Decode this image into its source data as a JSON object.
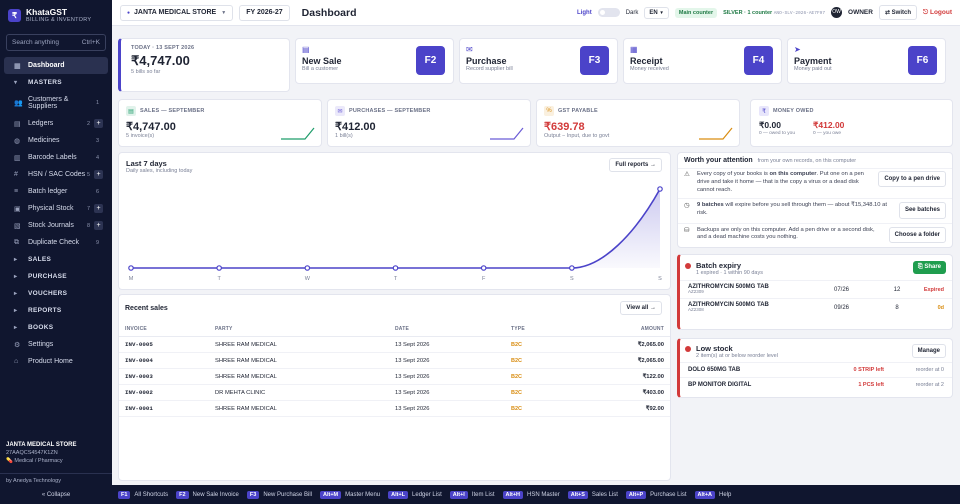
{
  "brand": {
    "name": "KhataGST",
    "subtitle": "BILLING & INVENTORY",
    "logo_symbol": "₹"
  },
  "sidebar": {
    "search": {
      "placeholder": "Search anything",
      "shortcut": "Ctrl+K"
    },
    "items": [
      {
        "label": "Dashboard",
        "icon": "grid-icon",
        "count": "",
        "plus": false,
        "active": true,
        "section": false
      },
      {
        "label": "MASTERS",
        "icon": "chevron-down-icon",
        "count": "",
        "plus": false,
        "active": false,
        "section": true
      },
      {
        "label": "Customers & Suppliers",
        "icon": "users-icon",
        "count": "1",
        "plus": false,
        "active": false,
        "section": false
      },
      {
        "label": "Ledgers",
        "icon": "book-icon",
        "count": "2",
        "plus": true,
        "active": false,
        "section": false
      },
      {
        "label": "Medicines",
        "icon": "pill-icon",
        "count": "3",
        "plus": false,
        "active": false,
        "section": false
      },
      {
        "label": "Barcode Labels",
        "icon": "barcode-icon",
        "count": "4",
        "plus": false,
        "active": false,
        "section": false
      },
      {
        "label": "HSN / SAC Codes",
        "icon": "hash-icon",
        "count": "5",
        "plus": true,
        "active": false,
        "section": false
      },
      {
        "label": "Batch ledger",
        "icon": "layers-icon",
        "count": "6",
        "plus": false,
        "active": false,
        "section": false
      },
      {
        "label": "Physical Stock",
        "icon": "box-icon",
        "count": "7",
        "plus": true,
        "active": false,
        "section": false
      },
      {
        "label": "Stock Journals",
        "icon": "journal-icon",
        "count": "8",
        "plus": true,
        "active": false,
        "section": false
      },
      {
        "label": "Duplicate Check",
        "icon": "copy-icon",
        "count": "9",
        "plus": false,
        "active": false,
        "section": false
      },
      {
        "label": "SALES",
        "icon": "chevron-right-icon",
        "count": "",
        "plus": false,
        "active": false,
        "section": true
      },
      {
        "label": "PURCHASE",
        "icon": "chevron-right-icon",
        "count": "",
        "plus": false,
        "active": false,
        "section": true
      },
      {
        "label": "VOUCHERS",
        "icon": "chevron-right-icon",
        "count": "",
        "plus": false,
        "active": false,
        "section": true
      },
      {
        "label": "REPORTS",
        "icon": "chevron-right-icon",
        "count": "",
        "plus": false,
        "active": false,
        "section": true
      },
      {
        "label": "BOOKS",
        "icon": "chevron-right-icon",
        "count": "",
        "plus": false,
        "active": false,
        "section": true
      },
      {
        "label": "Settings",
        "icon": "gear-icon",
        "count": "",
        "plus": false,
        "active": false,
        "section": false
      },
      {
        "label": "Product Home",
        "icon": "home-icon",
        "count": "",
        "plus": false,
        "active": false,
        "section": false
      }
    ],
    "footer": {
      "firm": "JANTA MEDICAL STORE",
      "gstin": "27AAQCS4547K1ZN",
      "type": "Medical / Pharmacy",
      "by": "by Anedya Technology",
      "collapse": "« Collapse"
    }
  },
  "topbar": {
    "company": "JANTA MEDICAL STORE",
    "fy": "FY 2026-27",
    "title": "Dashboard",
    "theme_light": "Light",
    "theme_dark": "Dark",
    "lang": "EN",
    "counter": "Main counter",
    "license": "SILVER · 1 counter",
    "license_key": "ANO-SLV-2026-AE7F97",
    "user_initials": "OW",
    "user": "OWNER",
    "switch": "Switch",
    "logout": "Logout"
  },
  "today": {
    "label": "TODAY · 13 SEPT 2026",
    "amount": "₹4,747.00",
    "sub": "5 bills so far"
  },
  "quick_actions": [
    {
      "title": "New Sale",
      "sub": "Bill a customer",
      "key": "F2",
      "icon": "document-icon"
    },
    {
      "title": "Purchase",
      "sub": "Record supplier bill",
      "key": "F3",
      "icon": "inbox-icon"
    },
    {
      "title": "Receipt",
      "sub": "Money received",
      "key": "F4",
      "icon": "receipt-icon"
    },
    {
      "title": "Payment",
      "sub": "Money paid out",
      "key": "F6",
      "icon": "send-icon"
    }
  ],
  "stats": [
    {
      "label": "SALES — SEPTEMBER",
      "value": "₹4,747.00",
      "sub": "5 invoice(s)",
      "icon": "document-icon",
      "color": "#1f9d6b",
      "valcolor": "#1f2433"
    },
    {
      "label": "PURCHASES — SEPTEMBER",
      "value": "₹412.00",
      "sub": "1 bill(s)",
      "icon": "inbox-icon",
      "color": "#6b5cd6",
      "valcolor": "#1f2433"
    },
    {
      "label": "GST PAYABLE",
      "value": "₹639.78",
      "sub": "Output − Input, due to govt",
      "icon": "percent-icon",
      "color": "#d98d12",
      "valcolor": "#d23a3a"
    }
  ],
  "money_owed": {
    "label": "MONEY OWED",
    "owed_to_you": "₹0.00",
    "owed_to_you_sub": "0 — owed to you",
    "you_owe": "₹412.00",
    "you_owe_sub": "0 — you owe"
  },
  "chart": {
    "title": "Last 7 days",
    "subtitle": "Daily sales, including today",
    "button": "Full reports →",
    "accent": "#4b43c9"
  },
  "chart_data": {
    "type": "area",
    "categories": [
      "M",
      "T",
      "W",
      "T",
      "F",
      "S",
      "S"
    ],
    "values": [
      0,
      0,
      0,
      0,
      0,
      0,
      4747
    ]
  },
  "recent_sales": {
    "title": "Recent sales",
    "button": "View all →",
    "columns": [
      "INVOICE",
      "PARTY",
      "DATE",
      "TYPE",
      "AMOUNT"
    ],
    "rows": [
      [
        "INV-0005",
        "SHREE RAM MEDICAL",
        "13 Sept 2026",
        "B2C",
        "₹2,065.00"
      ],
      [
        "INV-0004",
        "SHREE RAM MEDICAL",
        "13 Sept 2026",
        "B2C",
        "₹2,065.00"
      ],
      [
        "INV-0003",
        "SHREE RAM MEDICAL",
        "13 Sept 2026",
        "B2C",
        "₹122.00"
      ],
      [
        "INV-0002",
        "DR MEHTA CLINIC",
        "13 Sept 2026",
        "B2C",
        "₹403.00"
      ],
      [
        "INV-0001",
        "SHREE RAM MEDICAL",
        "13 Sept 2026",
        "B2C",
        "₹92.00"
      ]
    ]
  },
  "attention": {
    "title": "Worth your attention",
    "subtitle": "from your own records, on this computer",
    "items": [
      {
        "icon": "warning-icon",
        "text_a": "Every copy of your books is ",
        "bold": "on this computer",
        "text_b": ". Put one on a pen drive and take it home — that is the copy a virus or a dead disk cannot reach.",
        "button": "Copy to a pen drive"
      },
      {
        "icon": "clock-icon",
        "text_a": "",
        "bold": "9 batches",
        "text_b": " will expire before you sell through them — about ₹15,348.10 at risk.",
        "button": "See batches"
      },
      {
        "icon": "disk-icon",
        "text_a": "Backups are only on this computer. Add a pen drive or a second disk, and a dead machine costs you nothing.",
        "bold": "",
        "text_b": "",
        "button": "Choose a folder"
      }
    ]
  },
  "batch_expiry": {
    "title": "Batch expiry",
    "subtitle": "1 expired · 1 within 90 days",
    "share": "Share",
    "rows": [
      {
        "name": "AZITHROMYCIN 500MG TAB",
        "code": "AZ2309",
        "date": "07/26",
        "qty": "12",
        "status": "Expired",
        "kind": "red"
      },
      {
        "name": "AZITHROMYCIN 500MG TAB",
        "code": "AZ2308",
        "date": "09/26",
        "qty": "8",
        "status": "0d",
        "kind": "amber"
      }
    ]
  },
  "low_stock": {
    "title": "Low stock",
    "subtitle": "2 item(s) at or below reorder level",
    "button": "Manage",
    "rows": [
      {
        "name": "DOLO 650MG TAB",
        "left": "0 STRIP left",
        "reorder": "reorder at 0"
      },
      {
        "name": "BP MONITOR DIGITAL",
        "left": "1 PCS left",
        "reorder": "reorder at 2"
      }
    ]
  },
  "footer_keys": [
    {
      "key": "F1",
      "label": "All Shortcuts"
    },
    {
      "key": "F2",
      "label": "New Sale Invoice"
    },
    {
      "key": "F3",
      "label": "New Purchase Bill"
    },
    {
      "key": "Alt+M",
      "label": "Master Menu"
    },
    {
      "key": "Alt+L",
      "label": "Ledger List"
    },
    {
      "key": "Alt+I",
      "label": "Item List"
    },
    {
      "key": "Alt+H",
      "label": "HSN Master"
    },
    {
      "key": "Alt+S",
      "label": "Sales List"
    },
    {
      "key": "Alt+P",
      "label": "Purchase List"
    },
    {
      "key": "Alt+A",
      "label": "Help"
    }
  ]
}
